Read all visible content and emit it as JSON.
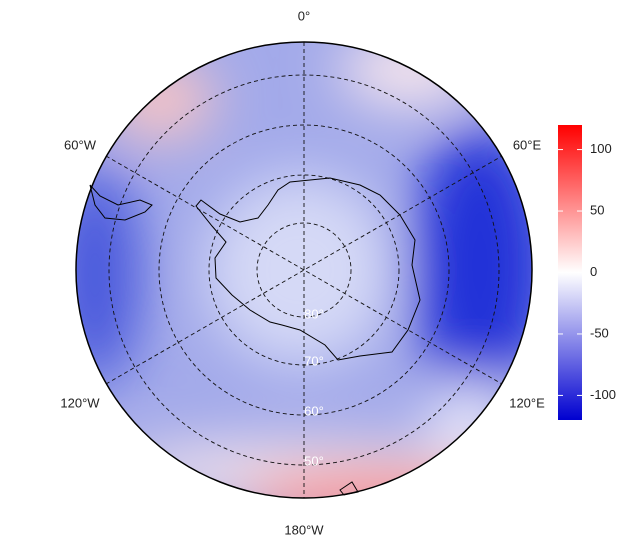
{
  "map": {
    "longitude_labels": [
      "0°",
      "60°E",
      "120°E",
      "180°W",
      "120°W",
      "60°W"
    ],
    "latitude_labels": [
      "80°",
      "70°",
      "60°",
      "50°"
    ]
  },
  "colorbar": {
    "lim": [
      -120,
      120
    ],
    "ticks": [
      -100,
      -50,
      0,
      50,
      100
    ]
  }
}
